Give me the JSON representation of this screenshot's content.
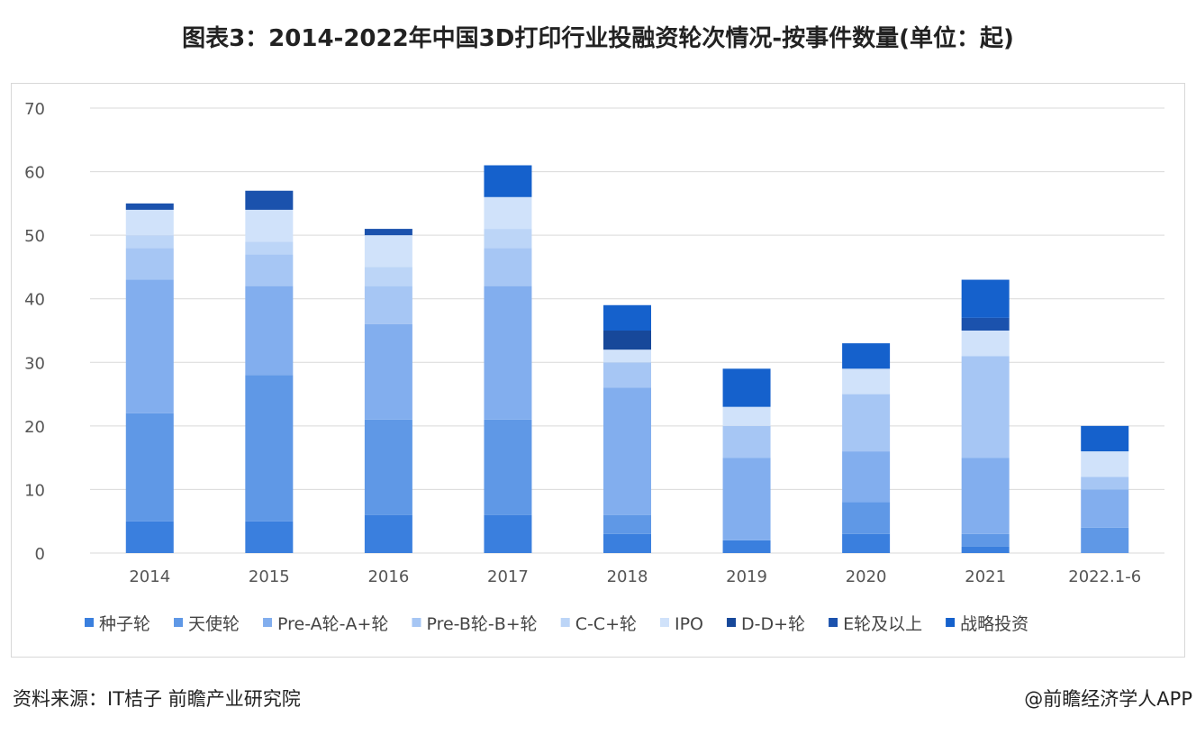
{
  "title": "图表3：2014-2022年中国3D打印行业投融资轮次情况-按事件数量(单位：起)",
  "source": "资料来源：IT桔子 前瞻产业研究院",
  "credit": "@前瞻经济学人APP",
  "chart_data": {
    "type": "bar",
    "stacked": true,
    "title": "图表3：2014-2022年中国3D打印行业投融资轮次情况-按事件数量(单位：起)",
    "categories": [
      "2014",
      "2015",
      "2016",
      "2017",
      "2018",
      "2019",
      "2020",
      "2021",
      "2022.1-6"
    ],
    "ylim": [
      0,
      70
    ],
    "yticks": [
      0,
      10,
      20,
      30,
      40,
      50,
      60,
      70
    ],
    "grid": true,
    "legend_position": "bottom",
    "series": [
      {
        "name": "种子轮",
        "color": "#3a7fde",
        "values": [
          5,
          5,
          6,
          6,
          3,
          2,
          3,
          1,
          0
        ]
      },
      {
        "name": "天使轮",
        "color": "#5f98e6",
        "values": [
          17,
          23,
          15,
          15,
          3,
          0,
          5,
          2,
          4
        ]
      },
      {
        "name": "Pre-A轮-A+轮",
        "color": "#82aeee",
        "values": [
          21,
          14,
          15,
          21,
          20,
          13,
          8,
          12,
          6
        ]
      },
      {
        "name": "Pre-B轮-B+轮",
        "color": "#a6c6f4",
        "values": [
          5,
          5,
          6,
          6,
          4,
          5,
          9,
          16,
          2
        ]
      },
      {
        "name": "C-C+轮",
        "color": "#bcd5f7",
        "values": [
          2,
          2,
          3,
          3,
          0,
          0,
          0,
          0,
          0
        ]
      },
      {
        "name": "IPO",
        "color": "#d0e2fa",
        "values": [
          4,
          5,
          5,
          5,
          2,
          3,
          4,
          4,
          4
        ]
      },
      {
        "name": "D-D+轮",
        "color": "#17489a",
        "values": [
          0,
          0,
          0,
          0,
          3,
          0,
          0,
          0,
          0
        ]
      },
      {
        "name": "E轮及以上",
        "color": "#1b52ad",
        "values": [
          1,
          3,
          1,
          0,
          0,
          0,
          0,
          2,
          0
        ]
      },
      {
        "name": "战略投资",
        "color": "#1561cc",
        "values": [
          0,
          0,
          0,
          5,
          4,
          6,
          4,
          6,
          4
        ]
      }
    ]
  }
}
